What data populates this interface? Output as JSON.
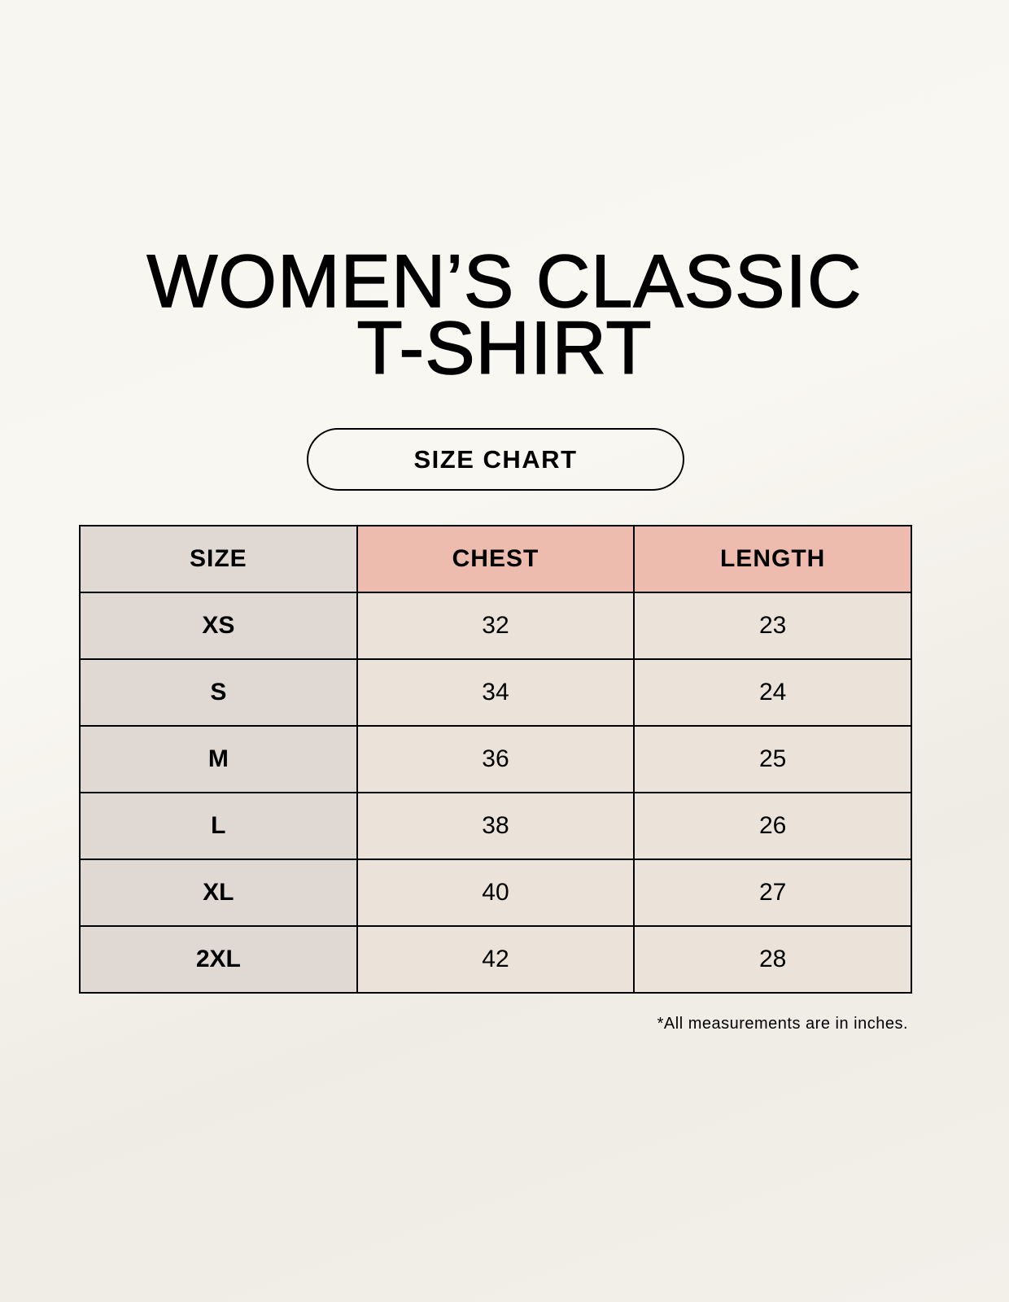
{
  "title": {
    "line1": "WOMEN’S CLASSIC",
    "line2": "T-SHIRT"
  },
  "subtitle": "SIZE CHART",
  "table": {
    "headers": [
      "SIZE",
      "CHEST",
      "LENGTH"
    ],
    "rows": [
      [
        "XS",
        "32",
        "23"
      ],
      [
        "S",
        "34",
        "24"
      ],
      [
        "M",
        "36",
        "25"
      ],
      [
        "L",
        "38",
        "26"
      ],
      [
        "XL",
        "40",
        "27"
      ],
      [
        "2XL",
        "42",
        "28"
      ]
    ]
  },
  "footnote": "*All measurements are in inches.",
  "colors": {
    "size_column": "#e0d9d3",
    "header_accent": "#edbcaf",
    "cells": "#ebe3d9"
  }
}
